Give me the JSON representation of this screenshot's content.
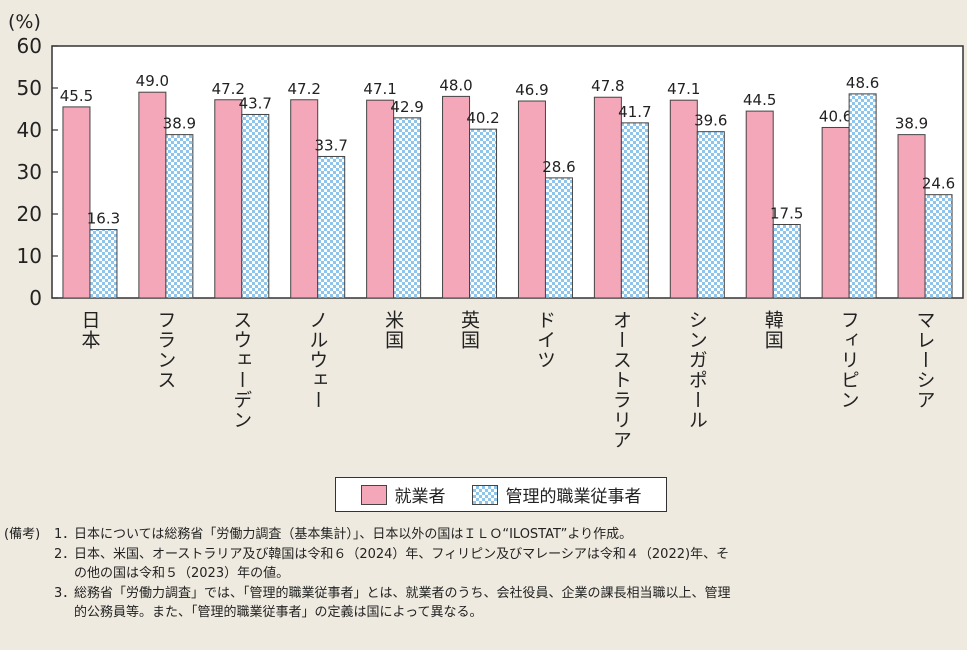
{
  "chart_data": {
    "type": "bar",
    "y_unit_label": "(%)",
    "ylim": [
      0,
      60
    ],
    "yticks": [
      0,
      10,
      20,
      30,
      40,
      50,
      60
    ],
    "categories": [
      "日本",
      "フランス",
      "スウェーデン",
      "ノルウェー",
      "米国",
      "英国",
      "ドイツ",
      "オーストラリア",
      "シンガポール",
      "韓国",
      "フィリピン",
      "マレーシア"
    ],
    "series": [
      {
        "name": "就業者",
        "color": "#f4a7b9",
        "values": [
          45.5,
          49.0,
          47.2,
          47.2,
          47.1,
          48.0,
          46.9,
          47.8,
          47.1,
          44.5,
          40.6,
          38.9
        ]
      },
      {
        "name": "管理的職業従事者",
        "color": "#8ec5ec",
        "pattern": "checkered",
        "values": [
          16.3,
          38.9,
          43.7,
          33.7,
          42.9,
          40.2,
          28.6,
          41.7,
          39.6,
          17.5,
          48.6,
          24.6
        ]
      }
    ],
    "legend": "bottom-center",
    "grid": false
  },
  "notes": {
    "heading": "(備考)",
    "items": [
      {
        "num": "1．",
        "lines": [
          "日本については総務省「労働力調査（基本集計）」、日本以外の国はＩＬＯ“ILOSTAT”より作成。"
        ]
      },
      {
        "num": "2．",
        "lines": [
          "日本、米国、オーストラリア及び韓国は令和６（2024）年、フィリピン及びマレーシアは令和４（2022)年、そ",
          "の他の国は令和５（2023）年の値。"
        ]
      },
      {
        "num": "3．",
        "lines": [
          "総務省「労働力調査」では、「管理的職業従事者」とは、就業者のうち、会社役員、企業の課長相当職以上、管理",
          "的公務員等。また、「管理的職業従事者」の定義は国によって異なる。"
        ]
      }
    ]
  }
}
